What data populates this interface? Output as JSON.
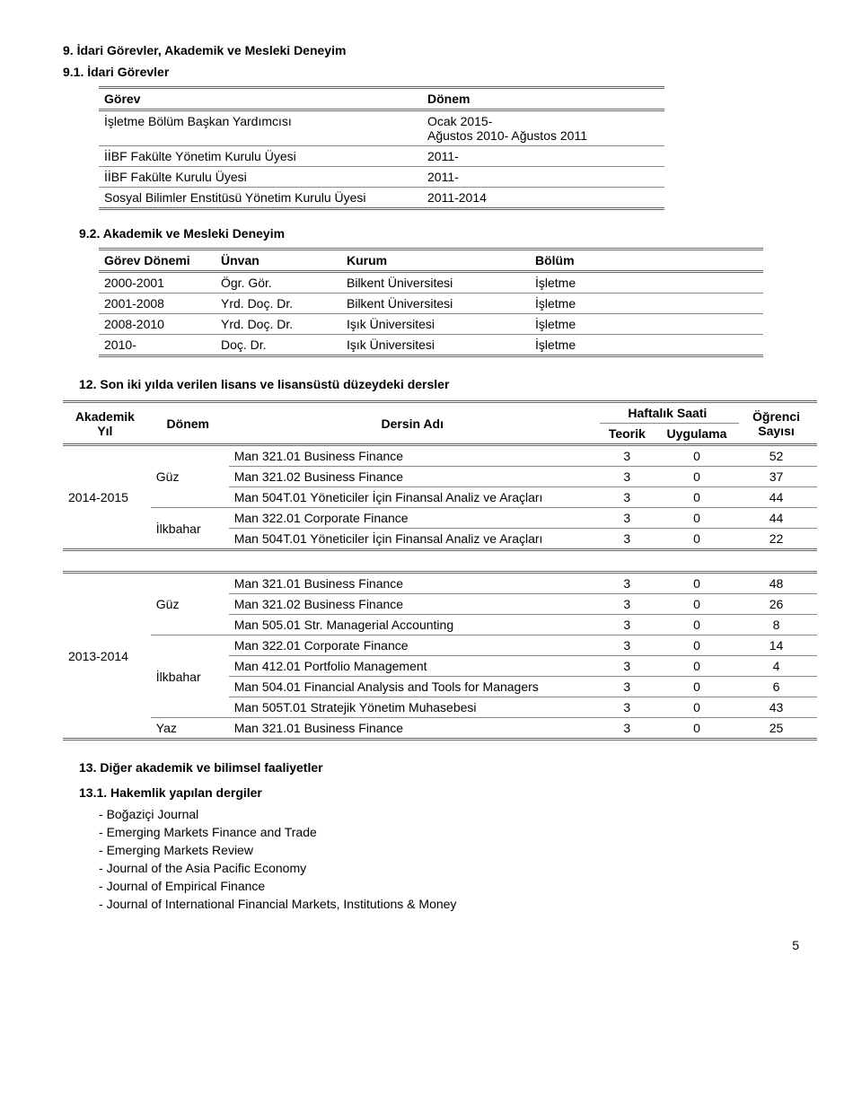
{
  "s9": {
    "title": "9.  İdari Görevler, Akademik ve Mesleki Deneyim"
  },
  "s91": {
    "title": "9.1. İdari Görevler",
    "headers": {
      "gorev": "Görev",
      "donem": "Dönem"
    },
    "rows": [
      {
        "gorev": "İşletme Bölüm Başkan Yardımcısı",
        "donem": "Ocak 2015-\nAğustos 2010- Ağustos 2011"
      },
      {
        "gorev": "İİBF Fakülte Yönetim Kurulu Üyesi",
        "donem": "2011-"
      },
      {
        "gorev": "İİBF Fakülte Kurulu Üyesi",
        "donem": "2011-"
      },
      {
        "gorev": "Sosyal Bilimler Enstitüsü Yönetim Kurulu Üyesi",
        "donem": "2011-2014"
      }
    ]
  },
  "s92": {
    "title": "9.2. Akademik ve Mesleki Deneyim",
    "headers": {
      "donem": "Görev Dönemi",
      "unvan": "Ünvan",
      "kurum": "Kurum",
      "bolum": "Bölüm"
    },
    "rows": [
      {
        "donem": "2000-2001",
        "unvan": "Ögr. Gör.",
        "kurum": "Bilkent Üniversitesi",
        "bolum": "İşletme"
      },
      {
        "donem": "2001-2008",
        "unvan": "Yrd. Doç. Dr.",
        "kurum": "Bilkent Üniversitesi",
        "bolum": "İşletme"
      },
      {
        "donem": "2008-2010",
        "unvan": "Yrd. Doç. Dr.",
        "kurum": "Işık Üniversitesi",
        "bolum": "İşletme"
      },
      {
        "donem": "2010-",
        "unvan": "Doç. Dr.",
        "kurum": "Işık Üniversitesi",
        "bolum": "İşletme"
      }
    ]
  },
  "s12": {
    "title": "12.  Son iki yılda verilen lisans ve lisansüstü düzeydeki dersler",
    "headers": {
      "akademik": "Akademik Yıl",
      "donem": "Dönem",
      "dersin": "Dersin Adı",
      "haftalik": "Haftalık Saati",
      "teorik": "Teorik",
      "uygulama": "Uygulama",
      "ogrenci": "Öğrenci Sayısı"
    },
    "blocks": [
      {
        "yil": "2014-2015",
        "groups": [
          {
            "donem": "Güz",
            "rows": [
              {
                "ders": "Man 321.01 Business Finance",
                "t": "3",
                "u": "0",
                "o": "52"
              },
              {
                "ders": "Man 321.02 Business Finance",
                "t": "3",
                "u": "0",
                "o": "37"
              },
              {
                "ders": "Man 504T.01 Yöneticiler İçin Finansal Analiz ve Araçları",
                "t": "3",
                "u": "0",
                "o": "44"
              }
            ]
          },
          {
            "donem": "İlkbahar",
            "rows": [
              {
                "ders": "Man 322.01 Corporate Finance",
                "t": "3",
                "u": "0",
                "o": "44"
              },
              {
                "ders": "Man 504T.01 Yöneticiler İçin Finansal Analiz ve Araçları",
                "t": "3",
                "u": "0",
                "o": "22"
              }
            ]
          }
        ]
      },
      {
        "yil": "2013-2014",
        "groups": [
          {
            "donem": "Güz",
            "rows": [
              {
                "ders": "Man 321.01 Business Finance",
                "t": "3",
                "u": "0",
                "o": "48"
              },
              {
                "ders": "Man 321.02 Business Finance",
                "t": "3",
                "u": "0",
                "o": "26"
              },
              {
                "ders": "Man 505.01 Str. Managerial Accounting",
                "t": "3",
                "u": "0",
                "o": "8"
              }
            ]
          },
          {
            "donem": "İlkbahar",
            "rows": [
              {
                "ders": "Man 322.01 Corporate Finance",
                "t": "3",
                "u": "0",
                "o": "14"
              },
              {
                "ders": "Man 412.01 Portfolio Management",
                "t": "3",
                "u": "0",
                "o": "4"
              },
              {
                "ders": "Man 504.01 Financial Analysis and Tools for Managers",
                "t": "3",
                "u": "0",
                "o": "6"
              },
              {
                "ders": "Man 505T.01 Stratejik Yönetim Muhasebesi",
                "t": "3",
                "u": "0",
                "o": "43"
              }
            ]
          },
          {
            "donem": "Yaz",
            "rows": [
              {
                "ders": "Man 321.01 Business Finance",
                "t": "3",
                "u": "0",
                "o": "25"
              }
            ]
          }
        ]
      }
    ]
  },
  "s13": {
    "title": "13.   Diğer akademik ve bilimsel faaliyetler"
  },
  "s131": {
    "title": "13.1. Hakemlik yapılan dergiler",
    "items": [
      "Boğaziçi Journal",
      "Emerging Markets Finance and Trade",
      "Emerging Markets Review",
      "Journal of the Asia Pacific Economy",
      "Journal of Empirical Finance",
      "Journal of International Financial Markets, Institutions & Money"
    ]
  },
  "pageNumber": "5"
}
